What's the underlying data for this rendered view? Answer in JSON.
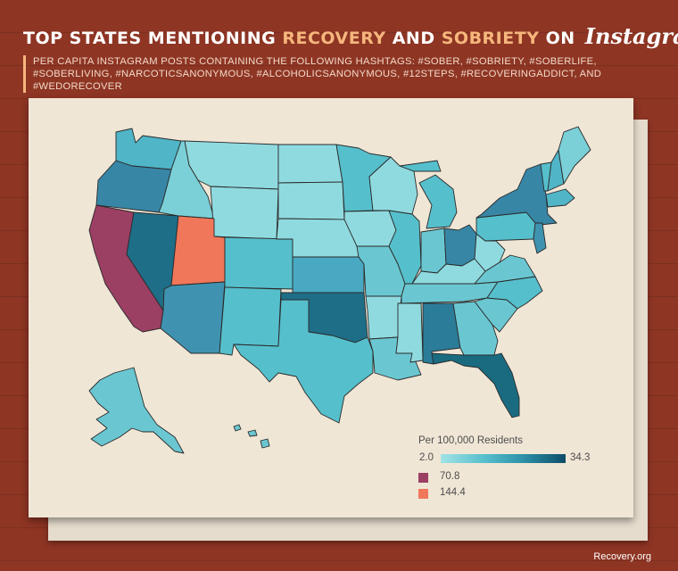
{
  "title": {
    "part1": "TOP STATES MENTIONING",
    "hl1": "RECOVERY",
    "and": "AND",
    "hl2": "SOBRIETY",
    "on": "ON",
    "brand": "Instagram"
  },
  "subtitle": "PER CAPITA INSTAGRAM POSTS CONTAINING THE FOLLOWING HASHTAGS: #SOBER, #SOBRIETY, #SOBERLIFE, #SOBERLIVING, #NARCOTICSANONYMOUS, #ALCOHOLICSANONYMOUS, #12STEPS, #RECOVERINGADDICT, AND #WEDORECOVER",
  "legend": {
    "title": "Per 100,000 Residents",
    "min": "2.0",
    "max": "34.3",
    "special": [
      {
        "label": "70.8",
        "color": "#9b3f63"
      },
      {
        "label": "144.4",
        "color": "#f0775a"
      }
    ]
  },
  "colors": {
    "background": "#8e3524",
    "card": "#f0e6d6",
    "accent": "#f6b67c",
    "scale_low": "#a2e3e6",
    "scale_high": "#0d4d68"
  },
  "states": {
    "WA": "#4fb5c7",
    "OR": "#3886a6",
    "CA": "#9b3f63",
    "NV": "#1f6e88",
    "ID": "#7bd0d8",
    "MT": "#8fdadf",
    "WY": "#8fdadf",
    "UT": "#f0775a",
    "AZ": "#3f93b0",
    "CO": "#56bfcc",
    "NM": "#56bfcc",
    "ND": "#8fdadf",
    "SD": "#8fdadf",
    "NE": "#8fdadf",
    "KS": "#4aa9c2",
    "OK": "#1f6e88",
    "TX": "#56bfcc",
    "MN": "#56bfcc",
    "IA": "#8fdadf",
    "MO": "#6ac7d1",
    "AR": "#8fdadf",
    "LA": "#6ac7d1",
    "WI": "#8fdadf",
    "IL": "#56bfcc",
    "MI": "#56bfcc",
    "IN": "#6ac7d1",
    "OH": "#3886a6",
    "KY": "#8fdadf",
    "TN": "#6ac7d1",
    "MS": "#8fdadf",
    "AL": "#2b7c99",
    "GA": "#6ac7d1",
    "FL": "#1a6b80",
    "SC": "#6ac7d1",
    "NC": "#56bfcc",
    "VA": "#6ac7d1",
    "WV": "#8fdadf",
    "PA": "#56bfcc",
    "NY": "#3886a6",
    "VT": "#56bfcc",
    "NH": "#4fb5c7",
    "ME": "#7bd0d8",
    "MA": "#4fb5c7",
    "NJ": "#3f93b0",
    "AK": "#6ac7d1",
    "HI": "#6ac7d1"
  },
  "footer": "Recovery.org"
}
